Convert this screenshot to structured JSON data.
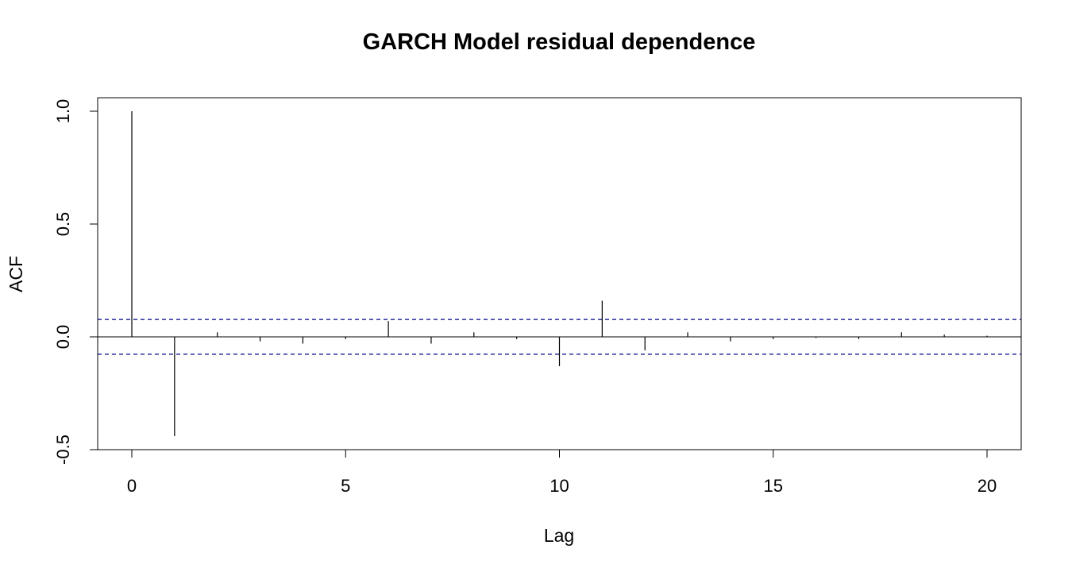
{
  "chart_data": {
    "type": "bar",
    "title": "GARCH Model residual dependence",
    "xlabel": "Lag",
    "ylabel": "ACF",
    "xlim": [
      -0.8,
      20.8
    ],
    "ylim": [
      -0.5,
      1.06
    ],
    "xticks": [
      0,
      5,
      10,
      15,
      20
    ],
    "xtick_labels": [
      "0",
      "5",
      "10",
      "15",
      "20"
    ],
    "yticks": [
      -0.5,
      0.0,
      0.5,
      1.0
    ],
    "ytick_labels": [
      "-0.5",
      "0.0",
      "0.5",
      "1.0"
    ],
    "grid": false,
    "series": [
      {
        "lags": [
          0,
          1,
          2,
          3,
          4,
          5,
          6,
          7,
          8,
          9,
          10,
          11,
          12,
          13,
          14,
          15,
          16,
          17,
          18,
          19,
          20
        ],
        "values": [
          1.0,
          -0.44,
          0.02,
          -0.02,
          -0.03,
          -0.01,
          0.07,
          -0.03,
          0.02,
          -0.01,
          -0.13,
          0.16,
          -0.06,
          0.02,
          -0.02,
          -0.01,
          -0.005,
          -0.01,
          0.02,
          0.01,
          0.005
        ]
      }
    ],
    "confidence_band": {
      "upper": 0.077,
      "lower": -0.077,
      "color": "#00008B"
    },
    "colors": {
      "bars": "#000000",
      "axis": "#000000",
      "band": "#00008B"
    }
  }
}
